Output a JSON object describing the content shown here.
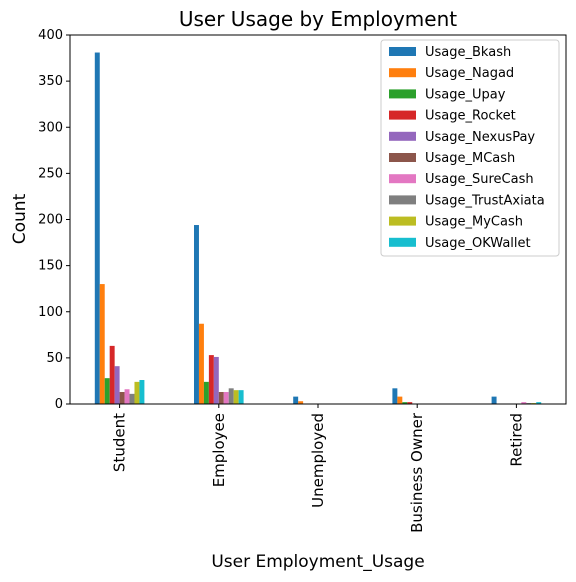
{
  "chart_data": {
    "type": "bar",
    "title": "User Usage by Employment",
    "xlabel": "User Employment_Usage",
    "ylabel": "Count",
    "ylim": [
      0,
      400
    ],
    "yticks": [
      0,
      50,
      100,
      150,
      200,
      250,
      300,
      350,
      400
    ],
    "grid": false,
    "legend_position": "top-right",
    "categories": [
      "Student",
      "Employee",
      "Unemployed",
      "Business Owner",
      "Retired"
    ],
    "series": [
      {
        "name": "Usage_Bkash",
        "color": "#1f77b4",
        "values": [
          381,
          194,
          8,
          17,
          8
        ]
      },
      {
        "name": "Usage_Nagad",
        "color": "#ff7f0e",
        "values": [
          130,
          87,
          3,
          8,
          0
        ]
      },
      {
        "name": "Usage_Upay",
        "color": "#2ca02c",
        "values": [
          28,
          24,
          0,
          2,
          0
        ]
      },
      {
        "name": "Usage_Rocket",
        "color": "#d62728",
        "values": [
          63,
          53,
          0,
          2,
          0
        ]
      },
      {
        "name": "Usage_NexusPay",
        "color": "#9467bd",
        "values": [
          41,
          51,
          0,
          0,
          0
        ]
      },
      {
        "name": "Usage_MCash",
        "color": "#8c564b",
        "values": [
          13,
          13,
          0,
          0,
          0
        ]
      },
      {
        "name": "Usage_SureCash",
        "color": "#e377c2",
        "values": [
          16,
          13,
          0,
          0,
          2
        ]
      },
      {
        "name": "Usage_TrustAxiata",
        "color": "#7f7f7f",
        "values": [
          11,
          17,
          0,
          0,
          1
        ]
      },
      {
        "name": "Usage_MyCash",
        "color": "#bcbd22",
        "values": [
          24,
          15,
          0,
          0,
          1
        ]
      },
      {
        "name": "Usage_OKWallet",
        "color": "#17becf",
        "values": [
          26,
          15,
          0,
          0,
          2
        ]
      }
    ]
  }
}
